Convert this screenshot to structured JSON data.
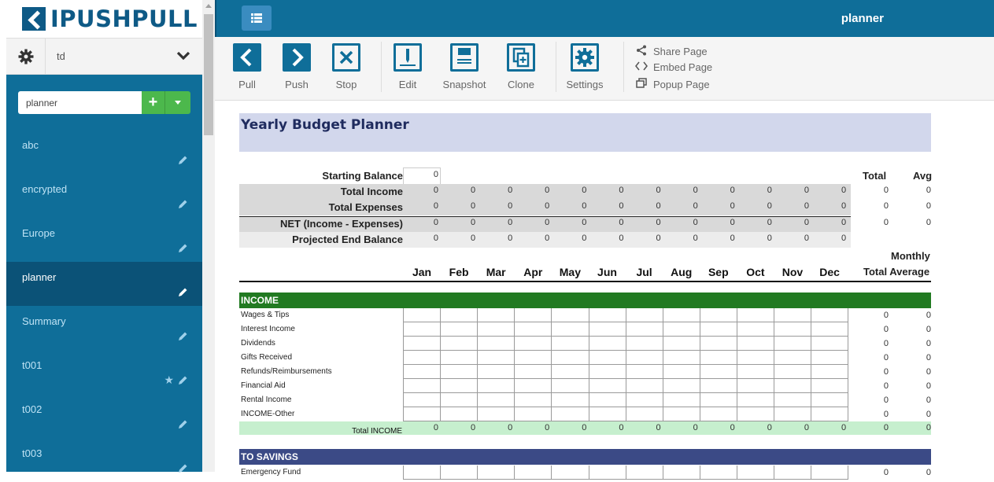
{
  "brand": {
    "logo_text": "IPUSHPULL"
  },
  "user": {
    "name": "td"
  },
  "sidebar": {
    "search_value": "planner",
    "add_label": "+",
    "pages": [
      {
        "label": "abc",
        "active": false,
        "starred": false
      },
      {
        "label": "encrypted",
        "active": false,
        "starred": false
      },
      {
        "label": "Europe",
        "active": false,
        "starred": false
      },
      {
        "label": "planner",
        "active": true,
        "starred": false
      },
      {
        "label": "Summary",
        "active": false,
        "starred": false
      },
      {
        "label": "t001",
        "active": false,
        "starred": true
      },
      {
        "label": "t002",
        "active": false,
        "starred": false
      },
      {
        "label": "t003",
        "active": false,
        "starred": false
      }
    ]
  },
  "header": {
    "page_title": "planner"
  },
  "toolbar": {
    "pull": "Pull",
    "push": "Push",
    "stop": "Stop",
    "edit": "Edit",
    "snapshot": "Snapshot",
    "clone": "Clone",
    "settings": "Settings",
    "share_page": "Share Page",
    "embed_page": "Embed Page",
    "popup_page": "Popup Page"
  },
  "sheet": {
    "title": "Yearly Budget Planner",
    "starting_balance_label": "Starting Balance",
    "starting_balance_value": "0",
    "total_header": "Total",
    "avg_header": "Avg",
    "summary_rows": [
      {
        "label": "Total Income",
        "values": [
          "0",
          "0",
          "0",
          "0",
          "0",
          "0",
          "0",
          "0",
          "0",
          "0",
          "0",
          "0"
        ],
        "total": "0",
        "avg": "0"
      },
      {
        "label": "Total Expenses",
        "values": [
          "0",
          "0",
          "0",
          "0",
          "0",
          "0",
          "0",
          "0",
          "0",
          "0",
          "0",
          "0"
        ],
        "total": "0",
        "avg": "0"
      },
      {
        "label": "NET (Income - Expenses)",
        "values": [
          "0",
          "0",
          "0",
          "0",
          "0",
          "0",
          "0",
          "0",
          "0",
          "0",
          "0",
          "0"
        ],
        "total": "0",
        "avg": "0"
      },
      {
        "label": "Projected End Balance",
        "values": [
          "0",
          "0",
          "0",
          "0",
          "0",
          "0",
          "0",
          "0",
          "0",
          "0",
          "0",
          "0"
        ],
        "total": "",
        "avg": ""
      }
    ],
    "months": [
      "Jan",
      "Feb",
      "Mar",
      "Apr",
      "May",
      "Jun",
      "Jul",
      "Aug",
      "Sep",
      "Oct",
      "Nov",
      "Dec"
    ],
    "monthly_header": "Monthly",
    "total_average_header": "Total Average",
    "income_section": "INCOME",
    "income_categories": [
      {
        "name": "Wages & Tips",
        "total": "0",
        "avg": "0"
      },
      {
        "name": "Interest Income",
        "total": "0",
        "avg": "0"
      },
      {
        "name": "Dividends",
        "total": "0",
        "avg": "0"
      },
      {
        "name": "Gifts Received",
        "total": "0",
        "avg": "0"
      },
      {
        "name": "Refunds/Reimbursements",
        "total": "0",
        "avg": "0"
      },
      {
        "name": "Financial Aid",
        "total": "0",
        "avg": "0"
      },
      {
        "name": "Rental Income",
        "total": "0",
        "avg": "0"
      },
      {
        "name": "INCOME-Other",
        "total": "0",
        "avg": "0"
      }
    ],
    "income_total": {
      "label": "Total INCOME",
      "values": [
        "0",
        "0",
        "0",
        "0",
        "0",
        "0",
        "0",
        "0",
        "0",
        "0",
        "0",
        "0"
      ],
      "total": "0",
      "avg": "0"
    },
    "savings_section": "TO SAVINGS",
    "savings_first_row": {
      "name": "Emergency Fund",
      "total": "0",
      "avg": "0"
    }
  },
  "colors": {
    "brand_blue": "#0f6e99",
    "active_page": "#0b5277",
    "income_green": "#217a21",
    "income_total_bg": "#c6efce",
    "savings_blue": "#3b4a86",
    "title_band": "#d2d7ec"
  }
}
